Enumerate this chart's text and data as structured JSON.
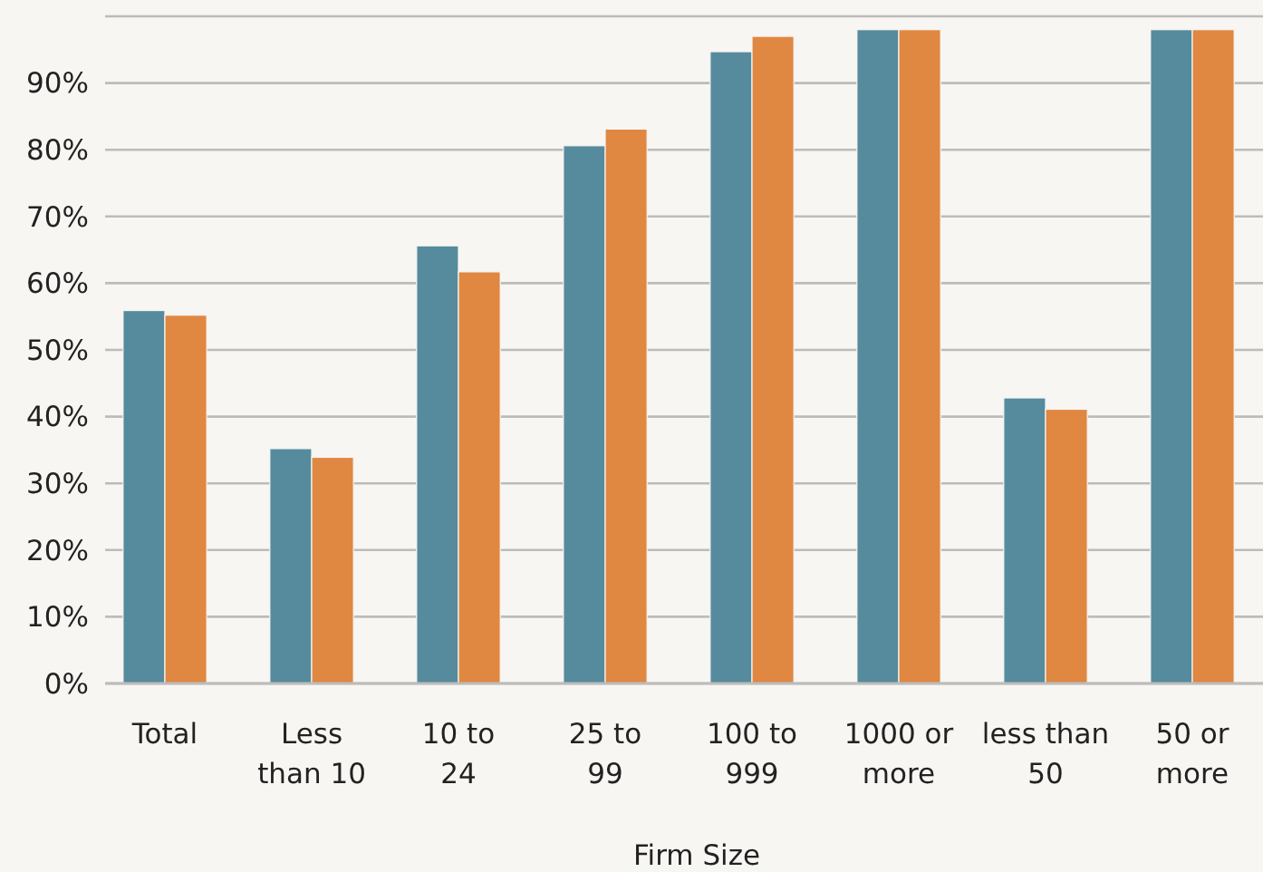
{
  "chart_data": {
    "type": "bar",
    "xlabel": "Firm Size",
    "categories": [
      "Total",
      "Less\nthan 10",
      "10 to\n24",
      "25 to\n99",
      "100 to\n999",
      "1000 or\nmore",
      "less than\n50",
      "50 or\nmore"
    ],
    "series": [
      {
        "color": "#568b9d",
        "values": [
          55.9,
          35.2,
          65.6,
          80.6,
          94.7,
          98,
          42.8,
          98
        ]
      },
      {
        "color": "#e08742",
        "values": [
          55.2,
          33.9,
          61.7,
          83.1,
          97,
          98,
          41.1,
          98
        ]
      }
    ],
    "ylim": [
      0,
      100
    ],
    "yticks": [
      {
        "value": 0,
        "label": "0%"
      },
      {
        "value": 10,
        "label": "10%"
      },
      {
        "value": 20,
        "label": "20%"
      },
      {
        "value": 30,
        "label": "30%"
      },
      {
        "value": 40,
        "label": "40%"
      },
      {
        "value": 50,
        "label": "50%"
      },
      {
        "value": 60,
        "label": "60%"
      },
      {
        "value": 70,
        "label": "70%"
      },
      {
        "value": 80,
        "label": "80%"
      },
      {
        "value": 90,
        "label": "90%"
      },
      {
        "value": 100,
        "label": null
      }
    ],
    "grid": "y"
  }
}
